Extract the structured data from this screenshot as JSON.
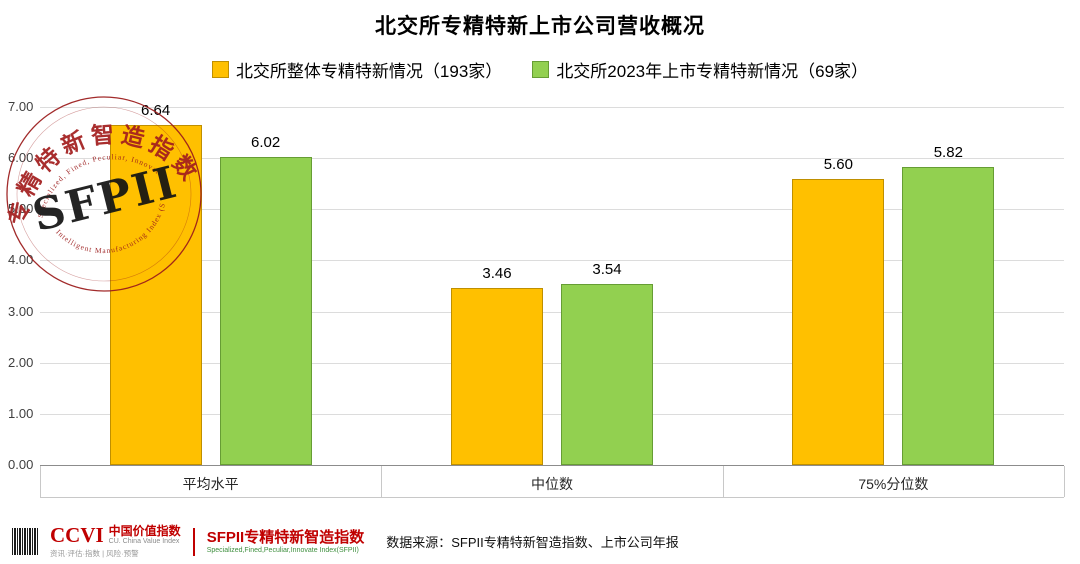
{
  "title": "北交所专精特新上市公司营收概况",
  "chart_data": {
    "type": "bar",
    "title": "北交所专精特新上市公司营收概况",
    "categories": [
      "平均水平",
      "中位数",
      "75%分位数"
    ],
    "series": [
      {
        "name": "北交所整体专精特新情况（193家）",
        "fill": "#FFC000",
        "border": "#BF8F00",
        "values": [
          6.64,
          3.46,
          5.6
        ]
      },
      {
        "name": "北交所2023年上市专精特新情况（69家）",
        "fill": "#92D050",
        "border": "#669D34",
        "values": [
          6.02,
          3.54,
          5.82
        ]
      }
    ],
    "xlabel": "",
    "ylabel": "",
    "ylim": [
      0,
      7
    ],
    "ytick_step": 1,
    "ytick_decimals": 2,
    "grid": true,
    "legend_position": "top",
    "value_labels": true
  },
  "stamp": {
    "arc_text": "专精特新智造指数",
    "center_text": "SFPII",
    "small_text_top": "Specialized, Fined, Peculiar, Innovative",
    "small_text_bottom": "Intelligent Manufacturing Index (SFPII)",
    "color": "#9B1B1B"
  },
  "footer": {
    "ccvi_logo": "CCVI",
    "ccvi_title": "中国价值指数",
    "ccvi_subtitle": "CU. China Value Index",
    "ccvi_tagline": "资讯·评估·指数 | 风险·预警",
    "sfpii_title": "SFPII专精特新智造指数",
    "sfpii_tagline": "Specialized,Fined,Peculiar,Innovate Index(SFPII)",
    "source": "数据来源：SFPII专精特新智造指数、上市公司年报"
  }
}
